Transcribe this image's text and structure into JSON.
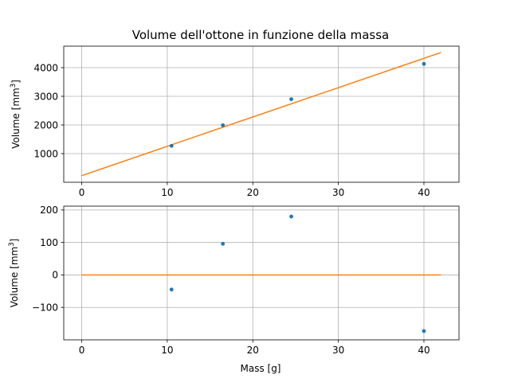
{
  "chart_data": [
    {
      "type": "scatter",
      "title": "Volume dell'ottone in funzione della massa",
      "xlabel": "",
      "ylabel": "Volume [mm3]",
      "ylabel_parts": {
        "base": "Volume [mm",
        "sup": "3",
        "close": "]"
      },
      "xlim": [
        -2.1,
        44.1
      ],
      "ylim": [
        0,
        4750
      ],
      "grid": true,
      "xticks": [
        0,
        10,
        20,
        30,
        40
      ],
      "yticks": [
        1000,
        2000,
        3000,
        4000
      ],
      "series": [
        {
          "kind": "points",
          "color": "#1f77b4",
          "x": [
            10.5,
            16.5,
            24.5,
            40.0
          ],
          "y": [
            1270,
            1990,
            2900,
            4130
          ]
        },
        {
          "kind": "line",
          "color": "#ff7f0e",
          "x": [
            0,
            42
          ],
          "y": [
            230,
            4530
          ]
        }
      ]
    },
    {
      "type": "scatter",
      "title": "",
      "xlabel": "Mass [g]",
      "ylabel": "Volume [mm3]",
      "ylabel_parts": {
        "base": "Volume [mm",
        "sup": "3",
        "close": "]"
      },
      "xlim": [
        -2.1,
        44.1
      ],
      "ylim": [
        -200,
        212
      ],
      "grid": true,
      "xticks": [
        0,
        10,
        20,
        30,
        40
      ],
      "yticks": [
        -100,
        0,
        100,
        200
      ],
      "series": [
        {
          "kind": "points",
          "color": "#1f77b4",
          "x": [
            10.5,
            16.5,
            24.5,
            40.0
          ],
          "y": [
            -45,
            96,
            180,
            -173
          ]
        },
        {
          "kind": "line",
          "color": "#ff7f0e",
          "x": [
            0,
            42
          ],
          "y": [
            0,
            0
          ]
        }
      ]
    }
  ]
}
